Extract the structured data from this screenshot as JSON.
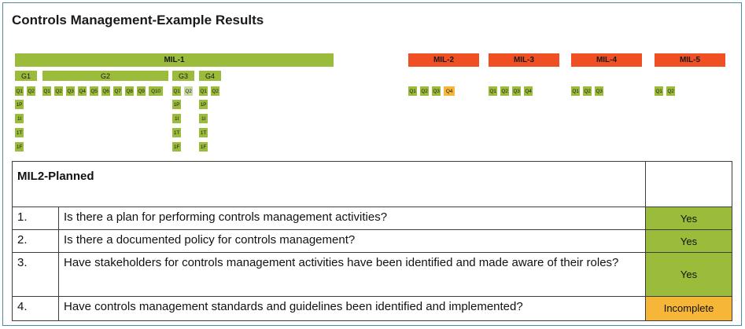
{
  "title": "Controls Management-Example Results",
  "mil_bars": {
    "mil1": "MIL-1",
    "mil2": "MIL-2",
    "mil3": "MIL-3",
    "mil4": "MIL-4",
    "mil5": "MIL-5"
  },
  "goals": {
    "g1": "G1",
    "g2": "G2",
    "g3": "G3",
    "g4": "G4"
  },
  "questions_row": {
    "g1": [
      "Q1",
      "Q2"
    ],
    "g2": [
      "Q1",
      "Q2",
      "Q3",
      "Q4",
      "Q5",
      "Q6",
      "Q7",
      "Q8",
      "Q9",
      "Q10"
    ],
    "g3": [
      "Q1",
      "Q2"
    ],
    "g4": [
      "Q1",
      "Q2"
    ],
    "mil2": [
      "Q1",
      "Q2",
      "Q3",
      "Q4"
    ],
    "mil3": [
      "Q1",
      "Q2",
      "Q3",
      "Q4"
    ],
    "mil4": [
      "Q1",
      "Q2",
      "Q3"
    ],
    "mil5": [
      "Q1",
      "Q2"
    ]
  },
  "practice_labels": [
    "1P",
    "1I",
    "1T",
    "1F"
  ],
  "colors": {
    "green": "#9bbb3b",
    "red": "#f04e23",
    "orange": "#f6b638",
    "border": "#4a8f9f"
  },
  "table": {
    "header": "MIL2-Planned",
    "rows": [
      {
        "num": "1.",
        "text": "Is there a plan for performing controls management activities?",
        "answer": "Yes"
      },
      {
        "num": "2.",
        "text": "Is there a documented policy for controls management?",
        "answer": "Yes"
      },
      {
        "num": "3.",
        "text": "Have stakeholders for controls management activities have been identified and made aware of their roles?",
        "answer": "Yes"
      },
      {
        "num": "4.",
        "text": "Have controls management standards and guidelines been identified and implemented?",
        "answer": "Incomplete"
      }
    ]
  }
}
